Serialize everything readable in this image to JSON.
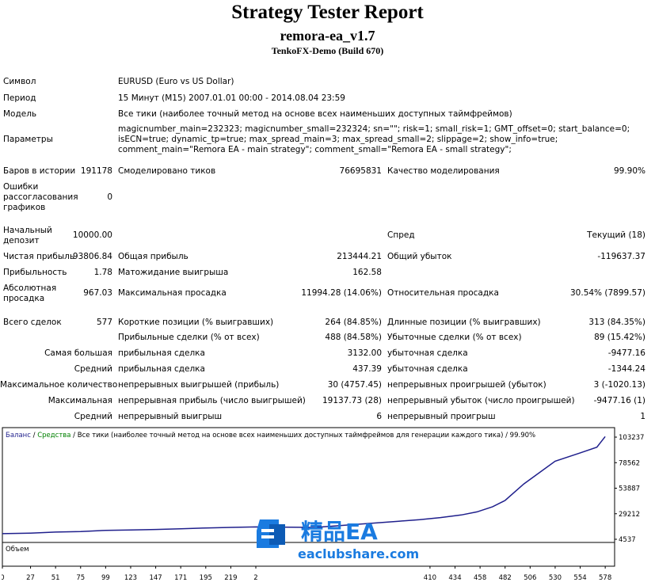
{
  "header": {
    "title": "Strategy Tester Report",
    "ea_name": "remora-ea_v1.7",
    "server": "TenkoFX-Demo (Build 670)"
  },
  "info": {
    "symbol_label": "Символ",
    "symbol_value": "EURUSD (Euro vs US Dollar)",
    "period_label": "Период",
    "period_value": "15 Минут (M15) 2007.01.01 00:00 - 2014.08.04 23:59",
    "model_label": "Модель",
    "model_value": "Все тики (наиболее точный метод на основе всех наименьших доступных таймфреймов)",
    "params_label": "Параметры",
    "params_value": "magicnumber_main=232323; magicnumber_small=232324; sn=\"\"; risk=1; small_risk=1; GMT_offset=0; start_balance=0; isECN=true; dynamic_tp=true; max_spread_main=3; max_spread_small=2; slippage=2; show_info=true; comment_main=\"Remora EA - main strategy\"; comment_small=\"Remora EA - small strategy\";"
  },
  "stats": {
    "bars_label": "Баров в истории",
    "bars_value": "191178",
    "ticks_label": "Смоделировано тиков",
    "ticks_value": "76695831",
    "quality_label": "Качество моделирования",
    "quality_value": "99.90%",
    "errors_label": "Ошибки рассогласования графиков",
    "errors_value": "0",
    "deposit_label": "Начальный депозит",
    "deposit_value": "10000.00",
    "spread_label": "Спред",
    "spread_value": "Текущий (18)",
    "net_profit_label": "Чистая прибыль",
    "net_profit_value": "93806.84",
    "gross_profit_label": "Общая прибыль",
    "gross_profit_value": "213444.21",
    "gross_loss_label": "Общий убыток",
    "gross_loss_value": "-119637.37",
    "profit_factor_label": "Прибыльность",
    "profit_factor_value": "1.78",
    "expected_payoff_label": "Матожидание выигрыша",
    "expected_payoff_value": "162.58",
    "abs_dd_label": "Абсолютная просадка",
    "abs_dd_value": "967.03",
    "max_dd_label": "Максимальная просадка",
    "max_dd_value": "11994.28 (14.06%)",
    "rel_dd_label": "Относительная просадка",
    "rel_dd_value": "30.54% (7899.57)",
    "total_trades_label": "Всего сделок",
    "total_trades_value": "577",
    "short_label": "Короткие позиции (% выигравших)",
    "short_value": "264 (84.85%)",
    "long_label": "Длинные позиции (% выигравших)",
    "long_value": "313 (84.35%)",
    "profit_trades_label": "Прибыльные сделки (% от всех)",
    "profit_trades_value": "488 (84.58%)",
    "loss_trades_label": "Убыточные сделки (% от всех)",
    "loss_trades_value": "89 (15.42%)",
    "largest_label": "Самая большая",
    "largest_profit_label": "прибыльная сделка",
    "largest_profit_value": "3132.00",
    "largest_loss_label": "убыточная сделка",
    "largest_loss_value": "-9477.16",
    "average_label": "Средний",
    "avg_profit_label": "прибыльная сделка",
    "avg_profit_value": "437.39",
    "avg_loss_label": "убыточная сделка",
    "avg_loss_value": "-1344.24",
    "max_count_label": "Максимальное количество",
    "max_cons_wins_label": "непрерывных выигрышей (прибыль)",
    "max_cons_wins_value": "30 (4757.45)",
    "max_cons_losses_label": "непрерывных проигрышей (убыток)",
    "max_cons_losses_value": "3 (-1020.13)",
    "maximal_label": "Максимальная",
    "max_cons_profit_label": "непрерывная прибыль (число выигрышей)",
    "max_cons_profit_value": "19137.73 (28)",
    "max_cons_loss_label": "непрерывный убыток (число проигрышей)",
    "max_cons_loss_value": "-9477.16 (1)",
    "avg2_label": "Средний",
    "avg_cons_wins_label": "непрерывный выигрыш",
    "avg_cons_wins_value": "6",
    "avg_cons_losses_label": "непрерывный проигрыш",
    "avg_cons_losses_value": "1"
  },
  "chart_data": {
    "type": "line",
    "legend_balance": "Баланс",
    "legend_sep1": " / ",
    "legend_equity": "Средства",
    "legend_sep2": " / ",
    "legend_model": "Все тики (наиболее точный метод на основе всех наименьших доступных таймфреймов для генерации каждого тика)",
    "legend_quality": " / 99.90%",
    "volume_label": "Объем",
    "y_ticks": [
      "103237",
      "78562",
      "53887",
      "29212",
      "4537"
    ],
    "x_ticks": [
      "0",
      "27",
      "51",
      "75",
      "99",
      "123",
      "147",
      "171",
      "195",
      "219",
      "2",
      "410",
      "434",
      "458",
      "482",
      "506",
      "530",
      "554",
      "578"
    ],
    "ylim": [
      4537,
      103237
    ],
    "x": [
      0,
      27,
      51,
      75,
      99,
      123,
      147,
      171,
      195,
      219,
      243,
      300,
      380,
      400,
      420,
      440,
      455,
      470,
      482,
      500,
      530,
      554,
      570,
      578
    ],
    "balance": [
      10000,
      10500,
      11500,
      12000,
      13200,
      13500,
      14000,
      14600,
      15500,
      16000,
      16500,
      16000,
      22000,
      23500,
      25500,
      28000,
      31000,
      36000,
      42000,
      58000,
      80000,
      88000,
      93500,
      103800
    ],
    "colors": {
      "balance": "#1f1f8c",
      "equity": "#008000",
      "axis": "#000000",
      "grid": "#c0c0c0"
    }
  },
  "watermark": {
    "brand": "精品EA",
    "site": "eaclubshare.com",
    "color": "#1a7be0"
  }
}
